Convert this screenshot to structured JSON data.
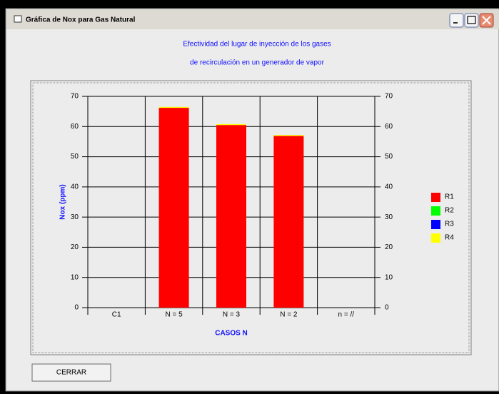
{
  "window": {
    "title": "Gráfica de Nox para Gas Natural"
  },
  "button": {
    "label": "CERRAR"
  },
  "chart_data": {
    "type": "bar",
    "stacked": true,
    "title": [
      "Efectividad del lugar de inyección de los gases",
      "de recirculación en un generador de vapor"
    ],
    "x_label": "CASOS N",
    "y_label": "Nox (ppm)",
    "categories": [
      "C1",
      "N = 5",
      "N = 3",
      "N = 2",
      "n = //"
    ],
    "series": [
      {
        "name": "R1",
        "color": "#ff0000",
        "values": [
          0,
          66.2,
          60.5,
          56.9,
          0
        ]
      },
      {
        "name": "R2",
        "color": "#00ff00",
        "values": [
          0,
          0,
          0,
          0,
          0
        ]
      },
      {
        "name": "R3",
        "color": "#0000ff",
        "values": [
          0,
          0,
          0,
          0,
          0
        ]
      },
      {
        "name": "R4",
        "color": "#ffff00",
        "values": [
          0,
          0.3,
          0.3,
          0.3,
          0
        ]
      }
    ],
    "ylim": [
      0,
      70
    ],
    "yticks": [
      0,
      10,
      20,
      30,
      40,
      50,
      60,
      70
    ],
    "y2lim": [
      0,
      70
    ],
    "y2ticks": [
      0,
      10,
      20,
      30,
      40,
      50,
      60,
      70
    ],
    "grid": true,
    "legend": "right"
  }
}
